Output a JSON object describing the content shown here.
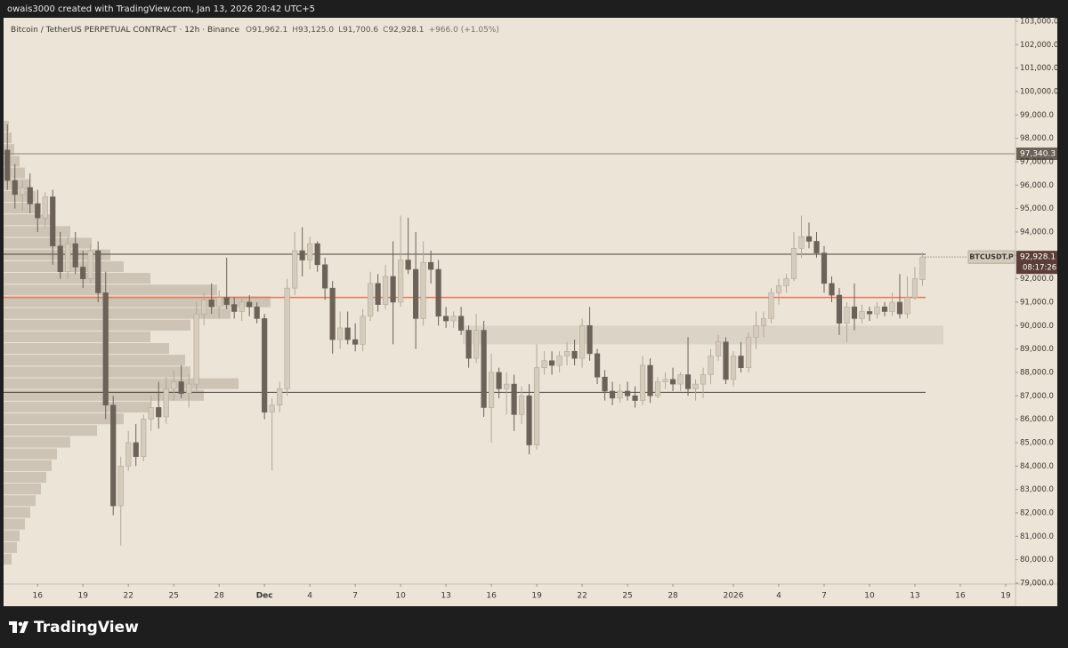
{
  "header": {
    "text": "owais3000 created with TradingView.com, Jan 13, 2026 20:42 UTC+5"
  },
  "chart_data": {
    "type": "candlestick",
    "title": "Bitcoin / TetherUS PERPETUAL CONTRACT · 12h · Binance",
    "ohlc_legend": [
      {
        "key": "O",
        "value": "91,962.1"
      },
      {
        "key": "H",
        "value": "93,125.0"
      },
      {
        "key": "L",
        "value": "91,700.6"
      },
      {
        "key": "C",
        "value": "92,928.1"
      }
    ],
    "change": "+966.0 (+1.05%)",
    "open": [
      97500,
      96200,
      95600,
      95900,
      95200,
      94600,
      95500,
      93400,
      92300,
      93500,
      92500,
      92000,
      93200,
      91400,
      86600,
      82300,
      84000,
      85000,
      84400,
      86000,
      86500,
      86100,
      87300,
      87600,
      87100,
      87500,
      90500,
      91100,
      90800,
      91200,
      90900,
      90600,
      91000,
      90800,
      90300,
      86300,
      86600,
      87300,
      91600,
      93200,
      92800,
      93500,
      92600,
      91600,
      89400,
      89900,
      89400,
      89200,
      90400,
      91800,
      90900,
      92100,
      91000,
      92800,
      92400,
      90300,
      92700,
      92400,
      90400,
      90200,
      90400,
      89800,
      88600,
      89800,
      86500,
      88000,
      87300,
      87500,
      86200,
      87000,
      84900,
      88200,
      88500,
      88300,
      88700,
      88900,
      88600,
      90000,
      88800,
      87800,
      87200,
      86900,
      87200,
      87000,
      86800,
      88300,
      87000,
      87600,
      87700,
      87500,
      87900,
      87300,
      87500,
      87900,
      88700,
      89300,
      87700,
      88700,
      88200,
      89500,
      90000,
      90300,
      91400,
      91700,
      92000,
      93300,
      93800,
      93600,
      93100,
      91800,
      91300,
      90100,
      90800,
      90300,
      90600,
      90500,
      90800,
      90600,
      91000,
      90500,
      91200,
      91962.1
    ],
    "high": [
      98600,
      96900,
      96200,
      96500,
      95800,
      95700,
      95800,
      94000,
      93800,
      94000,
      93200,
      93500,
      93600,
      92300,
      87000,
      84400,
      85500,
      85800,
      86200,
      87000,
      87600,
      87800,
      88100,
      88300,
      87900,
      91000,
      91400,
      91800,
      91500,
      92900,
      91200,
      91200,
      91300,
      91000,
      90500,
      86900,
      87600,
      92000,
      94000,
      94200,
      93800,
      93600,
      92900,
      91900,
      90600,
      90600,
      90100,
      90700,
      92300,
      92200,
      92600,
      93600,
      94700,
      94600,
      94000,
      93600,
      93200,
      92800,
      90800,
      90600,
      90800,
      90000,
      90500,
      90200,
      88800,
      88200,
      88000,
      87900,
      87400,
      87500,
      89200,
      88900,
      88900,
      88900,
      89300,
      89400,
      90300,
      90800,
      89000,
      88100,
      87600,
      87500,
      87600,
      87400,
      88700,
      88600,
      87800,
      88000,
      88200,
      88000,
      89500,
      87700,
      88200,
      89000,
      89600,
      89500,
      88900,
      89300,
      89700,
      90600,
      90600,
      91600,
      92000,
      92200,
      94000,
      94700,
      94400,
      94000,
      93400,
      92100,
      91600,
      91000,
      91800,
      90900,
      90800,
      91000,
      91000,
      91400,
      92200,
      92100,
      92500,
      93125
    ],
    "low": [
      95800,
      95000,
      94900,
      94800,
      94000,
      94200,
      92600,
      92000,
      92000,
      92200,
      91600,
      91800,
      91000,
      86000,
      81900,
      80600,
      83800,
      84000,
      84200,
      85500,
      85600,
      85800,
      86800,
      86900,
      86500,
      87200,
      90000,
      90500,
      90300,
      90700,
      90300,
      90200,
      90400,
      90100,
      86000,
      83800,
      86300,
      87000,
      91300,
      92100,
      92400,
      92300,
      91100,
      88800,
      89000,
      89200,
      88900,
      88900,
      90200,
      90600,
      90700,
      89200,
      90800,
      92200,
      89000,
      90000,
      91800,
      90000,
      89900,
      89900,
      89600,
      88200,
      88400,
      86100,
      85000,
      86900,
      86200,
      85500,
      85800,
      84500,
      84700,
      87900,
      87900,
      88000,
      88300,
      88300,
      88200,
      88500,
      87500,
      86800,
      86600,
      86700,
      86800,
      86500,
      86600,
      86700,
      86900,
      87300,
      87200,
      87200,
      87000,
      86800,
      86900,
      87500,
      88500,
      87500,
      87400,
      88000,
      88000,
      89000,
      89500,
      90100,
      90900,
      91400,
      91900,
      92900,
      93300,
      92900,
      91400,
      91000,
      89600,
      89300,
      89800,
      90100,
      90200,
      90300,
      90400,
      90400,
      90300,
      90300,
      91100,
      91700.6
    ],
    "close": [
      96200,
      95600,
      95900,
      95200,
      94600,
      95500,
      93400,
      92300,
      93500,
      92500,
      92000,
      93200,
      91400,
      86600,
      82300,
      84000,
      85000,
      84400,
      86000,
      86500,
      86100,
      87300,
      87600,
      87100,
      87500,
      90500,
      91100,
      90800,
      91200,
      90900,
      90600,
      91000,
      90800,
      90300,
      86300,
      86600,
      87300,
      91600,
      93200,
      92800,
      93500,
      92600,
      91600,
      89400,
      89900,
      89400,
      89200,
      90400,
      91800,
      90900,
      92100,
      91000,
      92800,
      92400,
      90300,
      92700,
      92400,
      90400,
      90200,
      90400,
      89800,
      88600,
      89800,
      86500,
      88000,
      87300,
      87500,
      86200,
      87000,
      84900,
      88200,
      88500,
      88300,
      88700,
      88900,
      88600,
      90000,
      88800,
      87800,
      87200,
      86900,
      87200,
      87000,
      86800,
      88300,
      87000,
      87600,
      87700,
      87500,
      87900,
      87300,
      87500,
      87900,
      88700,
      89300,
      87700,
      88700,
      88200,
      89500,
      90000,
      90300,
      91400,
      91700,
      92000,
      93300,
      93800,
      93600,
      93100,
      91800,
      91300,
      90100,
      90800,
      90300,
      90600,
      90500,
      90800,
      90600,
      91000,
      90500,
      91200,
      92000,
      92928.1
    ],
    "colors": {
      "up": "#d6ccbe",
      "down": "#6d6258",
      "up_edge": "#b3a796"
    },
    "xlim": [
      -0.5,
      133.3
    ],
    "xticks": [
      {
        "value": 4,
        "label": "16"
      },
      {
        "value": 10,
        "label": "19"
      },
      {
        "value": 16,
        "label": "22"
      },
      {
        "value": 22,
        "label": "25"
      },
      {
        "value": 28,
        "label": "28"
      },
      {
        "value": 34,
        "label": "Dec"
      },
      {
        "value": 40,
        "label": "4"
      },
      {
        "value": 46,
        "label": "7"
      },
      {
        "value": 52,
        "label": "10"
      },
      {
        "value": 58,
        "label": "13"
      },
      {
        "value": 64,
        "label": "16"
      },
      {
        "value": 70,
        "label": "19"
      },
      {
        "value": 76,
        "label": "22"
      },
      {
        "value": 82,
        "label": "25"
      },
      {
        "value": 88,
        "label": "28"
      },
      {
        "value": 96,
        "label": "2026"
      },
      {
        "value": 102,
        "label": "4"
      },
      {
        "value": 108,
        "label": "7"
      },
      {
        "value": 114,
        "label": "10"
      },
      {
        "value": 120,
        "label": "13"
      },
      {
        "value": 126,
        "label": "16"
      },
      {
        "value": 132,
        "label": "19"
      }
    ],
    "ylim": [
      78960,
      103150
    ],
    "yticks": [
      {
        "value": 79000,
        "label": "79,000.0"
      },
      {
        "value": 80000,
        "label": "80,000.0"
      },
      {
        "value": 81000,
        "label": "81,000.0"
      },
      {
        "value": 82000,
        "label": "82,000.0"
      },
      {
        "value": 83000,
        "label": "83,000.0"
      },
      {
        "value": 84000,
        "label": "84,000.0"
      },
      {
        "value": 85000,
        "label": "85,000.0"
      },
      {
        "value": 86000,
        "label": "86,000.0"
      },
      {
        "value": 87000,
        "label": "87,000.0"
      },
      {
        "value": 88000,
        "label": "88,000.0"
      },
      {
        "value": 89000,
        "label": "89,000.0"
      },
      {
        "value": 90000,
        "label": "90,000.0"
      },
      {
        "value": 91000,
        "label": "91,000.0"
      },
      {
        "value": 92000,
        "label": "92,000.0"
      },
      {
        "value": 93000,
        "label": "93,000.0"
      },
      {
        "value": 94000,
        "label": "94,000.0"
      },
      {
        "value": 95000,
        "label": "95,000.0"
      },
      {
        "value": 96000,
        "label": "96,000.0"
      },
      {
        "value": 97000,
        "label": "97,000.0"
      },
      {
        "value": 98000,
        "label": "98,000.0"
      },
      {
        "value": 99000,
        "label": "99,000.0"
      },
      {
        "value": 100000,
        "label": "100,000.0"
      },
      {
        "value": 101000,
        "label": "101,000.0"
      },
      {
        "value": 102000,
        "label": "102,000.0"
      },
      {
        "value": 103000,
        "label": "103,000.0"
      }
    ],
    "levels": [
      {
        "value": 97340.3,
        "label": "97,340.3",
        "color": "#8d857b"
      },
      {
        "value": 93050,
        "color": "#4a4440"
      },
      {
        "value": 91200,
        "color": "#e07a55"
      },
      {
        "value": 87150,
        "color": "#4a4440"
      }
    ],
    "zone": {
      "low": 89200,
      "high": 90000,
      "color": "#dcd3c7"
    },
    "last_price": {
      "value": 92928.1,
      "label": "92,928.1",
      "symbol": "BTCUSDT.P",
      "countdown": "08:17:26",
      "color": "#5b3e38"
    },
    "volume_profile": {
      "prices": [
        80000,
        80500,
        81000,
        81500,
        82000,
        82500,
        83000,
        83500,
        84000,
        84500,
        85000,
        85500,
        86000,
        86500,
        87000,
        87500,
        88000,
        88500,
        89000,
        89500,
        90000,
        90500,
        91000,
        91500,
        92000,
        92500,
        93000,
        93500,
        94000,
        94500,
        95000,
        95500,
        96000,
        96500,
        97000,
        97500,
        98000,
        98500
      ],
      "volumes": [
        3,
        5,
        6,
        8,
        10,
        12,
        14,
        16,
        18,
        20,
        25,
        35,
        45,
        55,
        75,
        88,
        70,
        68,
        62,
        55,
        70,
        85,
        100,
        80,
        55,
        45,
        40,
        33,
        25,
        18,
        14,
        12,
        10,
        8,
        6,
        4,
        3,
        2
      ],
      "color": "#c9beaf"
    }
  },
  "footer": {
    "brand": "TradingView"
  }
}
